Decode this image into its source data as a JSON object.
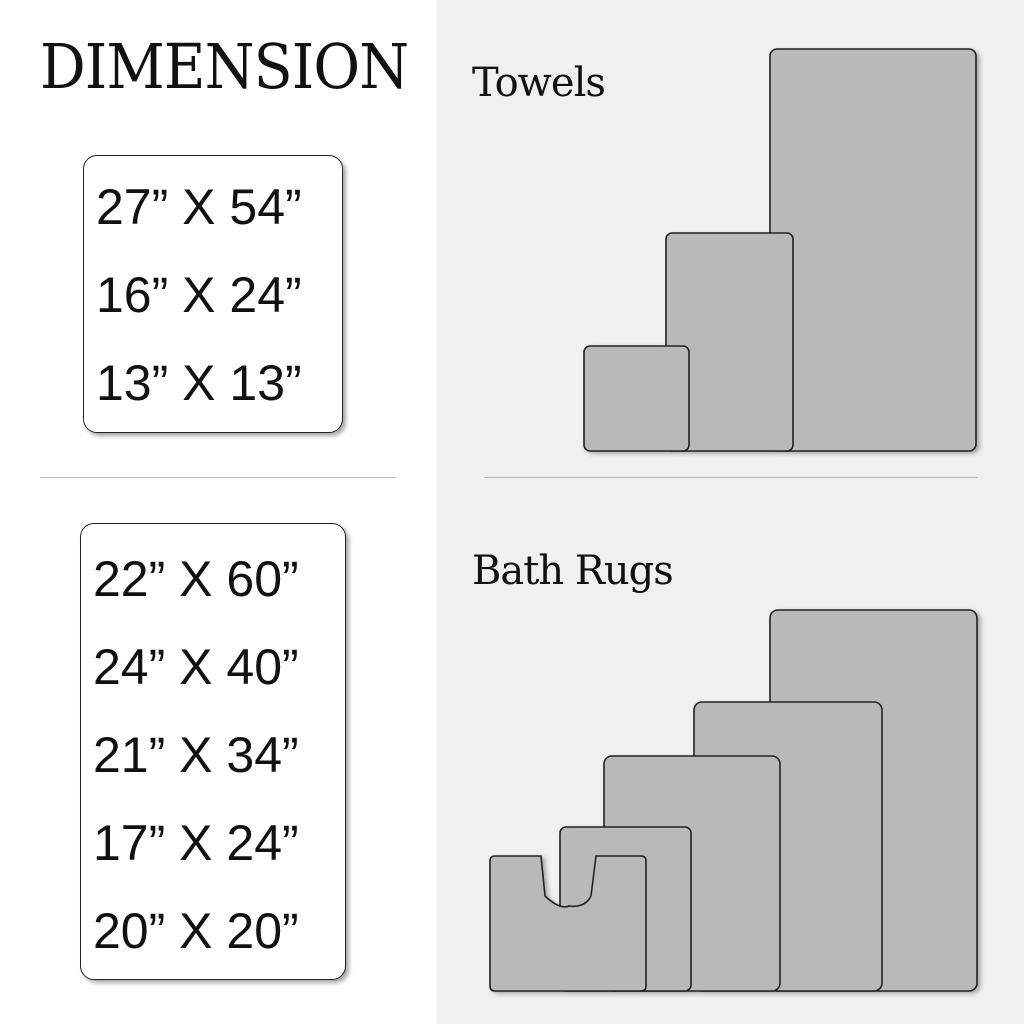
{
  "title": "DIMENSION",
  "towels": {
    "heading": "Towels",
    "sizes": [
      "27” X 54”",
      "16” X 24”",
      "13” X 13”"
    ]
  },
  "bath_rugs": {
    "heading": "Bath Rugs",
    "sizes": [
      "22” X 60”",
      "24” X 40”",
      "21” X 34”",
      "17” X 24”",
      "20” X 20”"
    ]
  },
  "colors": {
    "shape_fill": "#b9b9b9",
    "right_bg": "#f0f0f0",
    "outline": "#222222"
  }
}
